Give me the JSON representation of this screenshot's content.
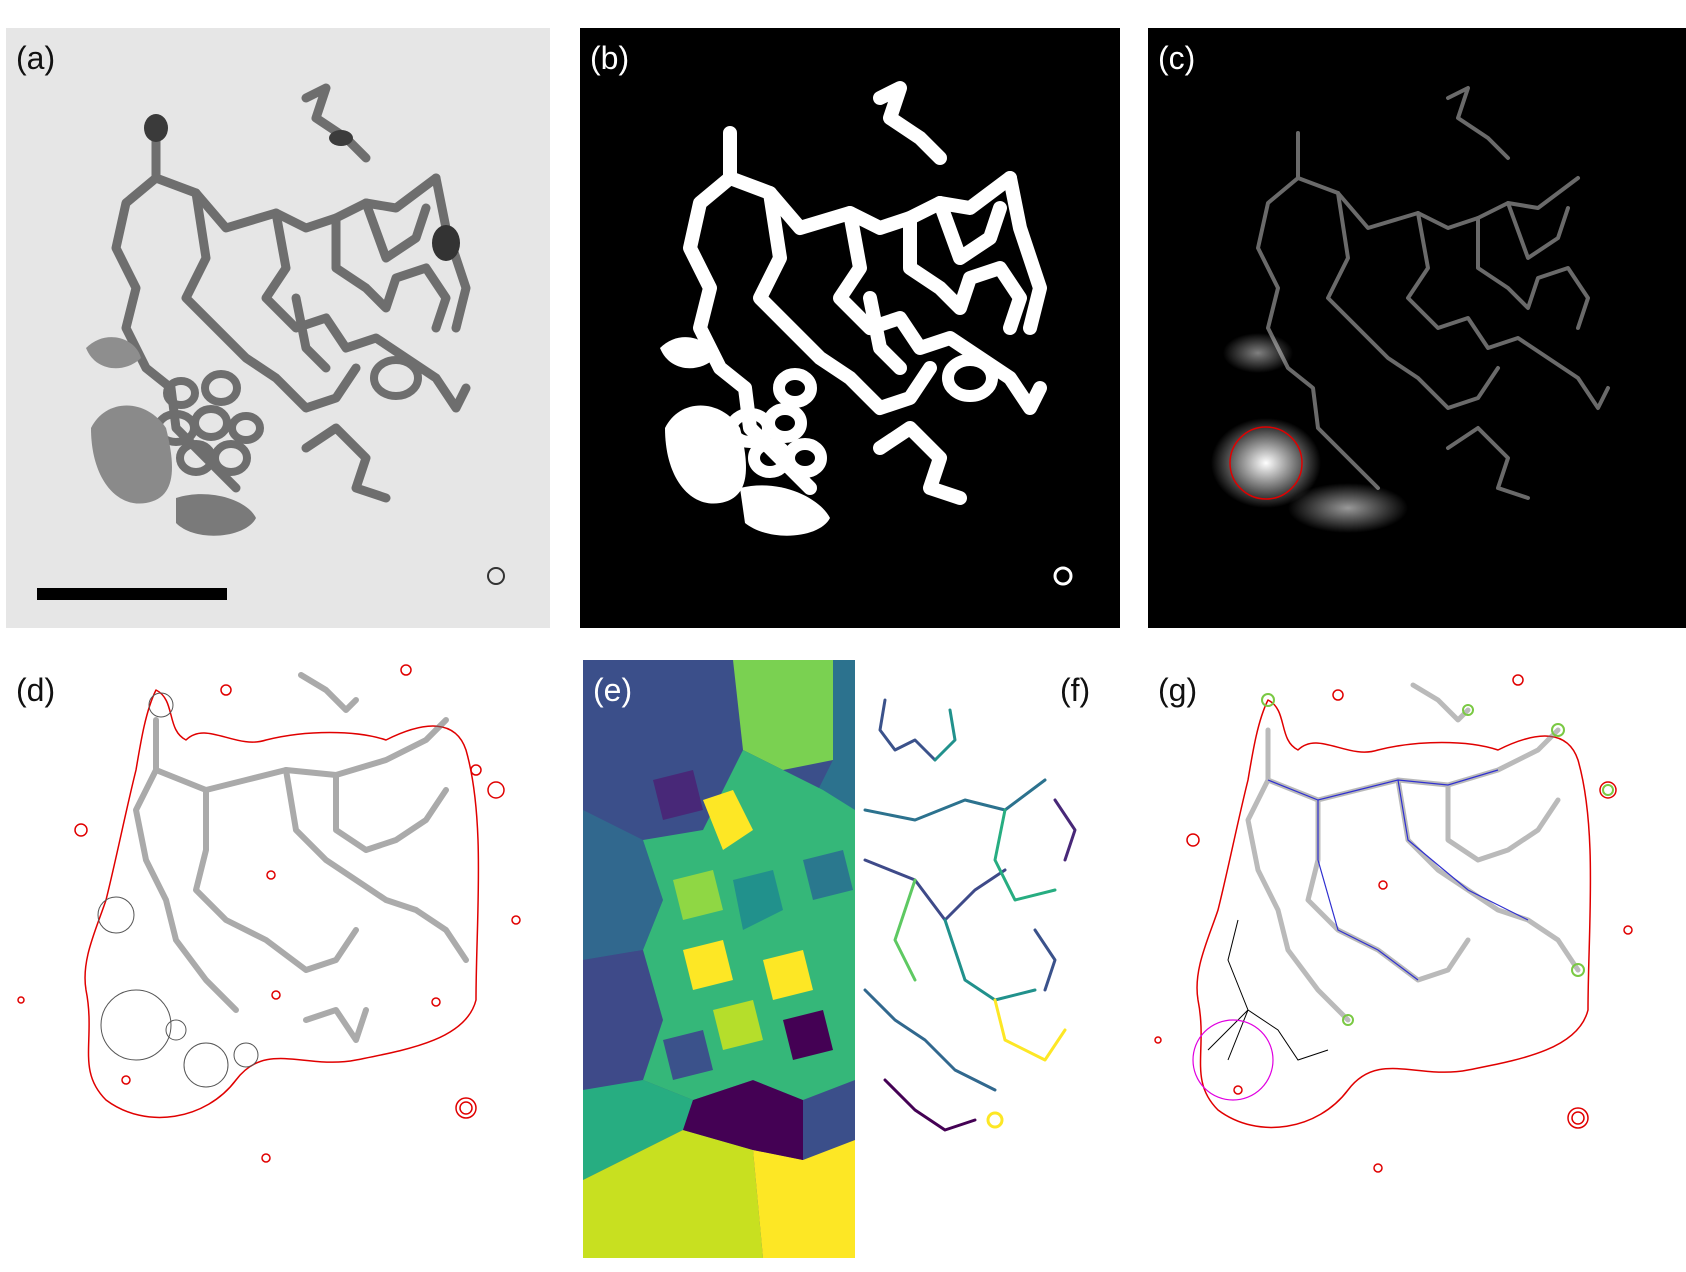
{
  "figure": {
    "panels": [
      {
        "id": "a",
        "label": "(a)"
      },
      {
        "id": "b",
        "label": "(b)"
      },
      {
        "id": "c",
        "label": "(c)"
      },
      {
        "id": "d",
        "label": "(d)"
      },
      {
        "id": "e",
        "label": "(e)"
      },
      {
        "id": "f",
        "label": "(f)"
      },
      {
        "id": "g",
        "label": "(g)"
      }
    ]
  },
  "colors": {
    "micrograph_bg": "#e6e6e6",
    "micrograph_fg": "#6b6b6b",
    "binary_fg": "#ffffff",
    "binary_bg": "#000000",
    "contour_red": "#e00000",
    "circle_gray": "#555555",
    "viridis_dark": "#440154",
    "viridis_blue": "#3b528b",
    "viridis_teal": "#21918c",
    "viridis_green": "#5ec962",
    "viridis_yellow": "#fde725"
  }
}
